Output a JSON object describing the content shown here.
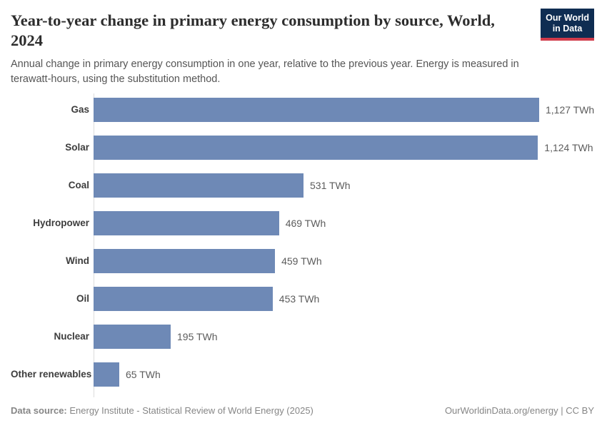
{
  "header": {
    "title": "Year-to-year change in primary energy consumption by source, World, 2024",
    "subtitle": "Annual change in primary energy consumption in one year, relative to the previous year. Energy is measured in terawatt-hours, using the substitution method."
  },
  "logo": {
    "line1": "Our World",
    "line2": "in Data",
    "background": "#0f2d52",
    "accent": "#d13b4b"
  },
  "chart_data": {
    "type": "bar",
    "orientation": "horizontal",
    "title": "Year-to-year change in primary energy consumption by source, World, 2024",
    "categories": [
      "Gas",
      "Solar",
      "Coal",
      "Hydropower",
      "Wind",
      "Oil",
      "Nuclear",
      "Other renewables"
    ],
    "values": [
      1127,
      1124,
      531,
      469,
      459,
      453,
      195,
      65
    ],
    "value_labels": [
      "1,127 TWh",
      "1,124 TWh",
      "531 TWh",
      "469 TWh",
      "459 TWh",
      "453 TWh",
      "195 TWh",
      "65 TWh"
    ],
    "unit": "TWh",
    "xlim": [
      0,
      1127
    ],
    "bar_color": "#6e89b6",
    "grid": false,
    "legend": "none"
  },
  "footer": {
    "source_label": "Data source:",
    "source_text": " Energy Institute - Statistical Review of World Energy (2025)",
    "credit": "OurWorldinData.org/energy | CC BY"
  }
}
